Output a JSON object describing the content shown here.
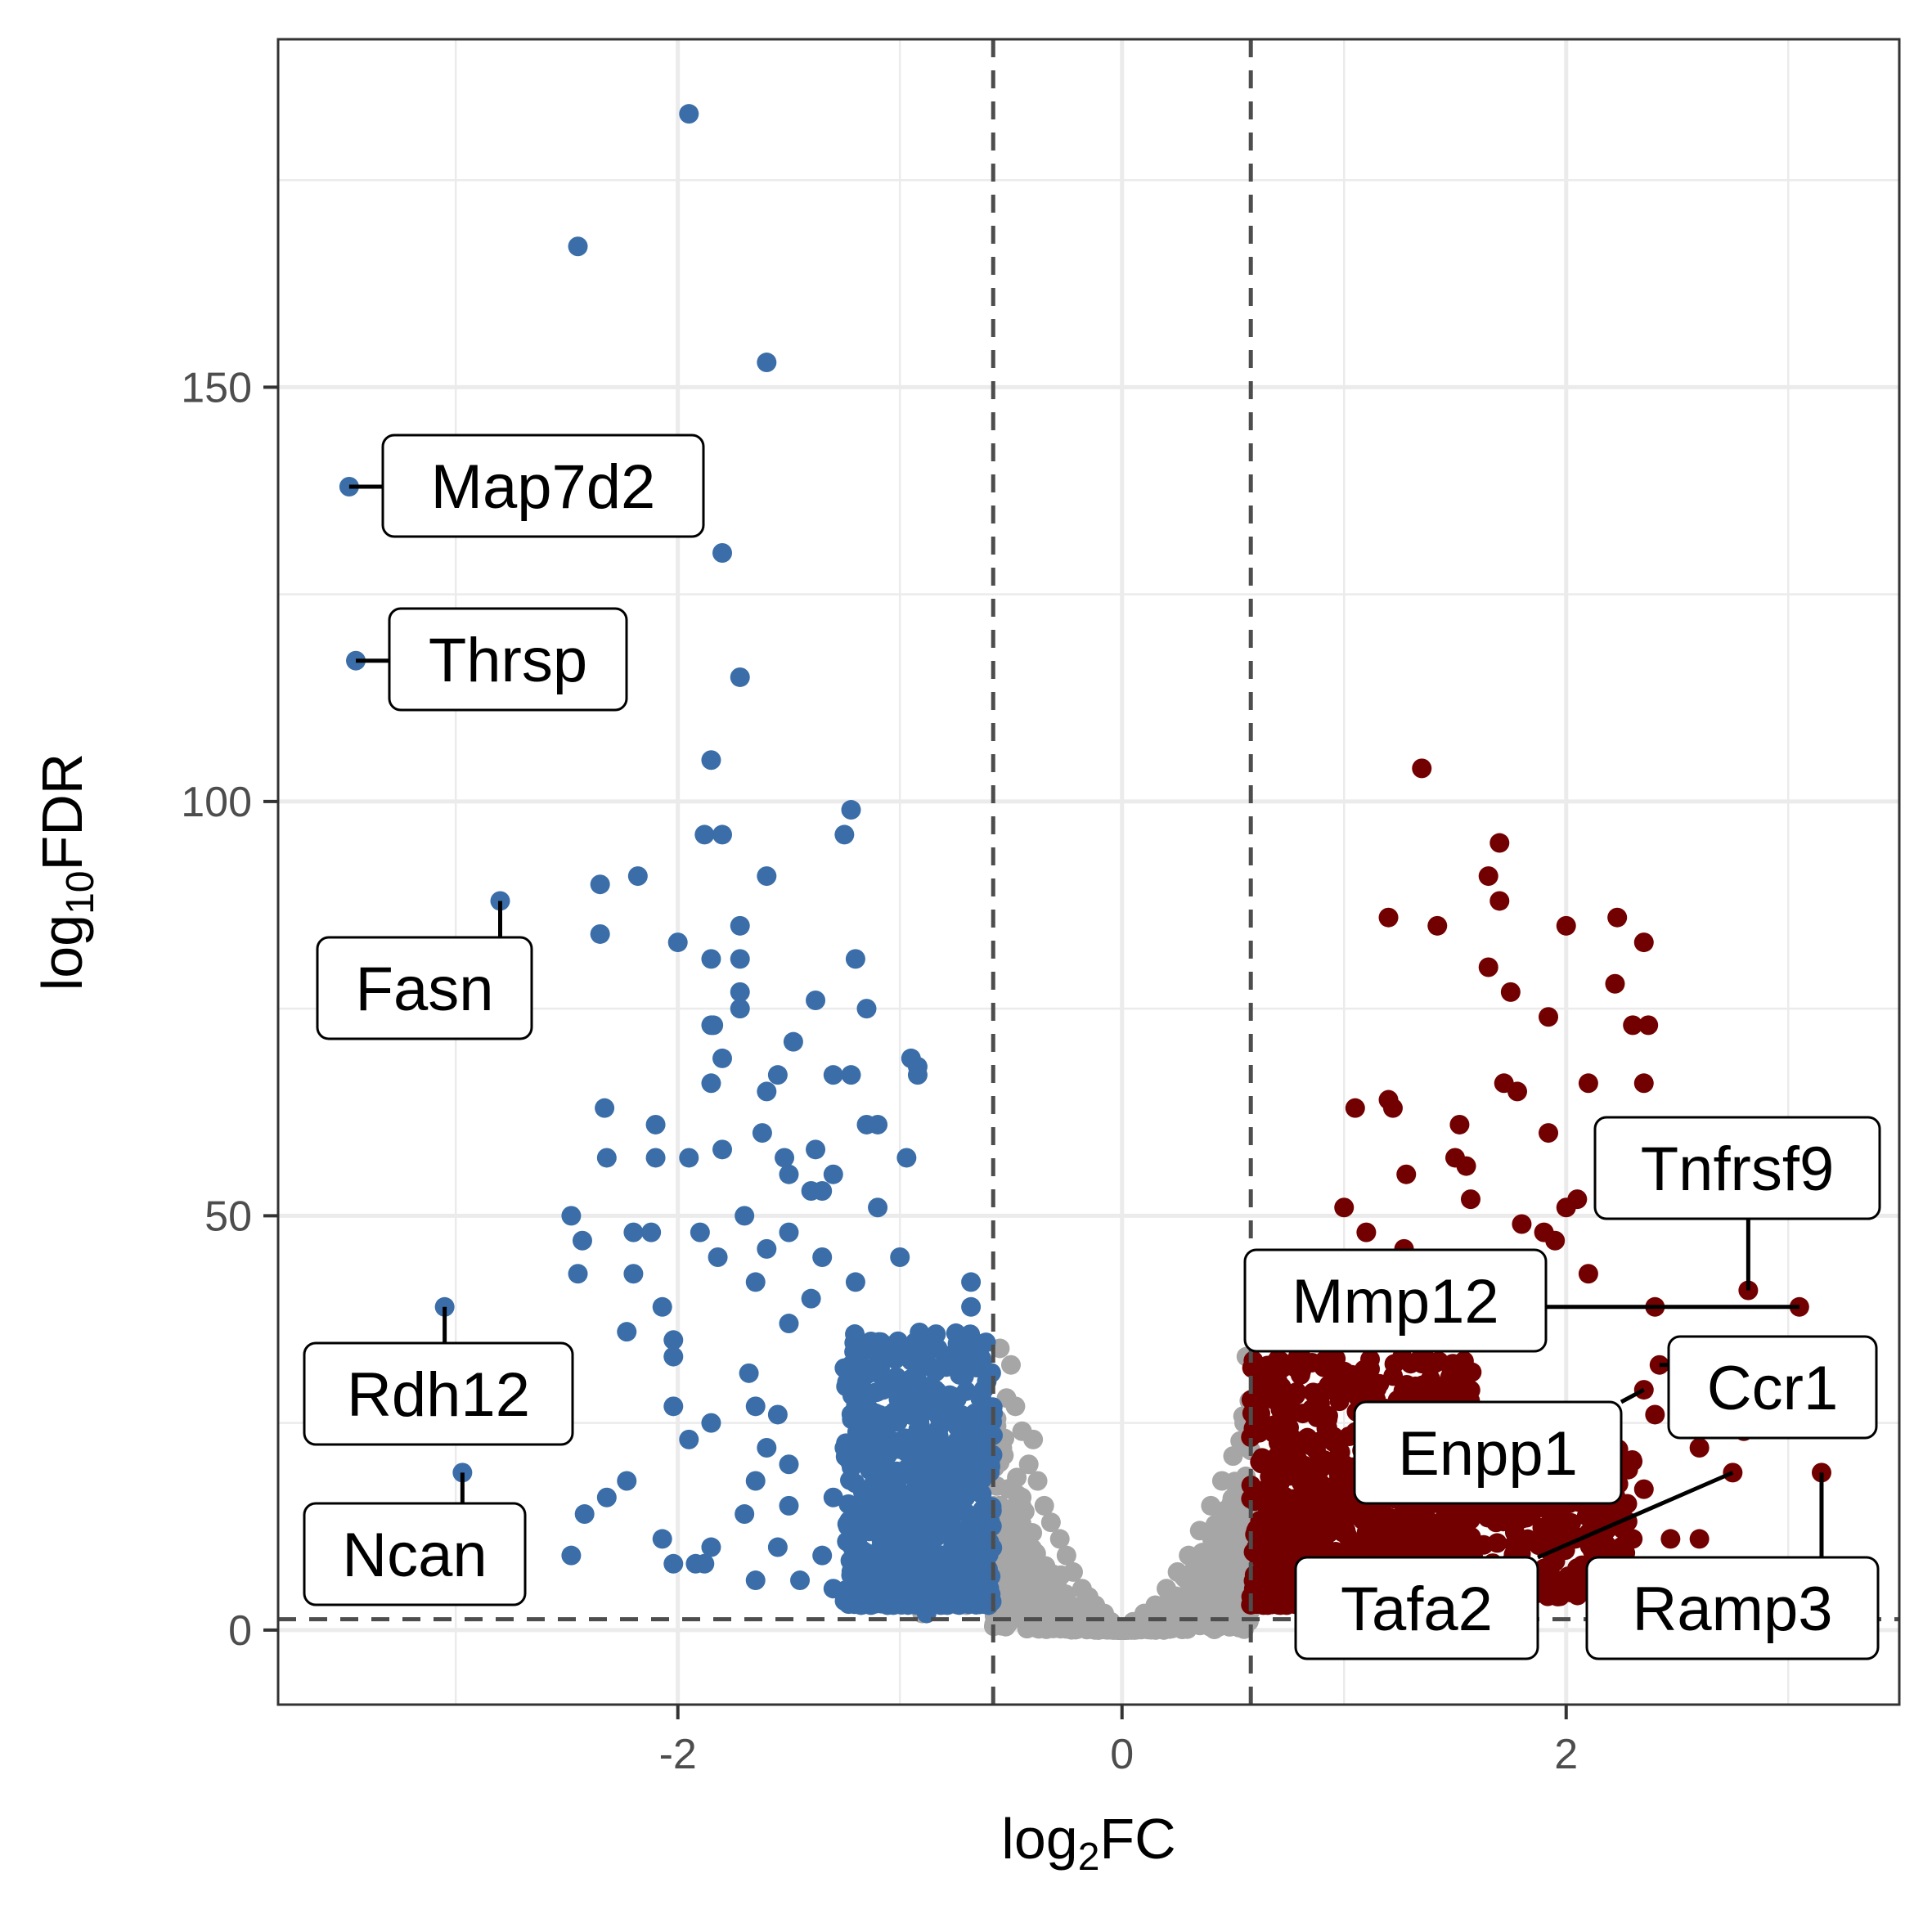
{
  "chart_data": {
    "type": "scatter",
    "title": "",
    "xlabel": "log2FC",
    "ylabel": "log10FDR",
    "xlim": [
      -3.8,
      3.5
    ],
    "ylim": [
      -9,
      192
    ],
    "x_ticks": [
      -2,
      0,
      2
    ],
    "y_ticks": [
      0,
      50,
      100,
      150
    ],
    "x_tick_labels": [
      "-2",
      "0",
      "2"
    ],
    "y_tick_labels": [
      "0",
      "50",
      "100",
      "150"
    ],
    "grid": true,
    "legend": "none",
    "thresholds": {
      "log2FC": [
        -0.58,
        0.58
      ],
      "log10FDR": 1.3
    },
    "colors": {
      "down": "#3B6EA8",
      "up": "#730000",
      "ns": "#A6A6A6",
      "threshold_line": "#4d4d4d"
    },
    "series": [
      {
        "color": "#3B6EA8",
        "points": [
          [
            -1.95,
            183
          ],
          [
            -2.45,
            167
          ],
          [
            -1.6,
            153
          ],
          [
            -3.48,
            138
          ],
          [
            -1.8,
            130
          ],
          [
            -3.45,
            117
          ],
          [
            -1.72,
            115
          ],
          [
            -1.85,
            105
          ],
          [
            -1.22,
            99
          ],
          [
            -1.25,
            96
          ],
          [
            -1.88,
            96
          ],
          [
            -1.8,
            96
          ],
          [
            -2.8,
            88
          ],
          [
            -2.18,
            91
          ],
          [
            -2.35,
            90
          ],
          [
            -1.6,
            91
          ],
          [
            -2.35,
            84
          ],
          [
            -1.72,
            85
          ],
          [
            -2.0,
            83
          ],
          [
            -1.85,
            81
          ],
          [
            -1.72,
            81
          ],
          [
            -1.2,
            81
          ],
          [
            -1.72,
            77
          ],
          [
            -1.72,
            75
          ],
          [
            -1.38,
            76
          ],
          [
            -1.15,
            75
          ],
          [
            -1.85,
            73
          ],
          [
            -1.84,
            73
          ],
          [
            -1.48,
            71
          ],
          [
            -1.8,
            69
          ],
          [
            -1.55,
            67
          ],
          [
            -1.3,
            67
          ],
          [
            -1.22,
            67
          ],
          [
            -0.95,
            69
          ],
          [
            -0.92,
            68
          ],
          [
            -1.85,
            66
          ],
          [
            -1.6,
            65
          ],
          [
            -0.92,
            67
          ],
          [
            -2.33,
            63
          ],
          [
            -2.1,
            61
          ],
          [
            -1.15,
            61
          ],
          [
            -1.1,
            61
          ],
          [
            -2.1,
            57
          ],
          [
            -1.95,
            57
          ],
          [
            -1.8,
            58
          ],
          [
            -1.38,
            58
          ],
          [
            -0.97,
            57
          ],
          [
            -2.32,
            57
          ],
          [
            -1.62,
            60
          ],
          [
            -1.52,
            57
          ],
          [
            -1.5,
            55
          ],
          [
            -1.3,
            55
          ],
          [
            -1.4,
            53
          ],
          [
            -1.35,
            53
          ],
          [
            -2.48,
            50
          ],
          [
            -1.7,
            50
          ],
          [
            -1.5,
            48
          ],
          [
            -2.2,
            48
          ],
          [
            -2.12,
            48
          ],
          [
            -1.9,
            48
          ],
          [
            -1.1,
            51
          ],
          [
            -1.6,
            46
          ],
          [
            -2.43,
            47
          ],
          [
            -1.82,
            45
          ],
          [
            -1.35,
            45
          ],
          [
            -1.0,
            45
          ],
          [
            -1.2,
            42
          ],
          [
            -0.68,
            42
          ],
          [
            -2.2,
            43
          ],
          [
            -2.45,
            43
          ],
          [
            -1.65,
            42
          ],
          [
            -1.4,
            40
          ],
          [
            -2.07,
            39
          ],
          [
            -0.68,
            39
          ],
          [
            -3.05,
            39
          ],
          [
            -1.5,
            37
          ],
          [
            -2.23,
            36
          ],
          [
            -2.02,
            35
          ],
          [
            -2.02,
            33
          ],
          [
            -1.68,
            31
          ],
          [
            -1.65,
            27
          ],
          [
            -1.55,
            26
          ],
          [
            -2.02,
            27
          ],
          [
            -1.85,
            25
          ],
          [
            -1.95,
            23
          ],
          [
            -1.6,
            22
          ],
          [
            -1.5,
            20
          ],
          [
            -1.65,
            18
          ],
          [
            -2.97,
            19
          ],
          [
            -2.23,
            18
          ],
          [
            -2.32,
            16
          ],
          [
            -1.3,
            16
          ],
          [
            -1.5,
            15
          ],
          [
            -1.7,
            14
          ],
          [
            -2.42,
            14
          ],
          [
            -2.07,
            11
          ],
          [
            -1.85,
            10
          ],
          [
            -2.48,
            9
          ],
          [
            -1.55,
            10
          ],
          [
            -1.35,
            9
          ],
          [
            -2.02,
            8
          ],
          [
            -1.92,
            8
          ],
          [
            -1.88,
            8
          ],
          [
            -1.65,
            6
          ],
          [
            -1.45,
            6
          ],
          [
            -1.3,
            5
          ],
          [
            -1.15,
            5
          ],
          [
            -0.9,
            5
          ],
          [
            -0.78,
            5
          ],
          [
            -1.0,
            4
          ],
          [
            -0.88,
            2
          ]
        ]
      },
      {
        "color": "#730000",
        "points": [
          [
            1.35,
            104
          ],
          [
            1.7,
            95
          ],
          [
            1.65,
            91
          ],
          [
            1.7,
            88
          ],
          [
            1.2,
            86
          ],
          [
            1.42,
            85
          ],
          [
            2.0,
            85
          ],
          [
            2.23,
            86
          ],
          [
            2.35,
            83
          ],
          [
            1.65,
            80
          ],
          [
            1.75,
            77
          ],
          [
            2.22,
            78
          ],
          [
            1.92,
            74
          ],
          [
            2.3,
            73
          ],
          [
            2.37,
            73
          ],
          [
            1.72,
            66
          ],
          [
            1.78,
            65
          ],
          [
            2.35,
            66
          ],
          [
            2.1,
            66
          ],
          [
            1.2,
            64
          ],
          [
            1.22,
            63
          ],
          [
            1.05,
            63
          ],
          [
            1.52,
            61
          ],
          [
            1.92,
            60
          ],
          [
            1.5,
            57
          ],
          [
            1.55,
            56
          ],
          [
            1.28,
            55
          ],
          [
            1.57,
            52
          ],
          [
            2.05,
            52
          ],
          [
            1.0,
            51
          ],
          [
            2.0,
            51
          ],
          [
            1.8,
            49
          ],
          [
            1.9,
            48
          ],
          [
            1.1,
            48
          ],
          [
            1.95,
            47
          ],
          [
            1.27,
            46
          ],
          [
            2.1,
            43
          ],
          [
            2.82,
            41
          ],
          [
            3.05,
            39
          ],
          [
            2.4,
            39
          ],
          [
            1.42,
            41
          ],
          [
            1.6,
            38
          ],
          [
            2.42,
            32
          ],
          [
            2.35,
            29
          ],
          [
            2.85,
            28
          ],
          [
            2.4,
            26
          ],
          [
            2.8,
            24
          ],
          [
            2.6,
            22
          ],
          [
            3.15,
            19
          ],
          [
            2.75,
            19
          ],
          [
            2.35,
            17
          ],
          [
            1.9,
            17
          ],
          [
            2.05,
            16
          ],
          [
            2.2,
            13
          ],
          [
            2.3,
            11
          ],
          [
            2.6,
            11
          ],
          [
            2.47,
            11
          ],
          [
            2.15,
            9
          ]
        ]
      },
      {
        "color": "#A6A6A6",
        "points": [
          [
            -0.55,
            34
          ],
          [
            -0.5,
            32
          ],
          [
            -0.52,
            28
          ],
          [
            -0.48,
            27
          ],
          [
            -0.45,
            24
          ],
          [
            -0.4,
            23
          ],
          [
            -0.42,
            20
          ],
          [
            -0.38,
            18
          ],
          [
            -0.35,
            15
          ],
          [
            -0.32,
            13
          ],
          [
            -0.28,
            11
          ],
          [
            -0.25,
            9
          ],
          [
            -0.22,
            7
          ],
          [
            -0.18,
            5
          ],
          [
            -0.15,
            4
          ],
          [
            -0.12,
            3
          ],
          [
            -0.08,
            2
          ],
          [
            -0.05,
            1
          ],
          [
            0.0,
            0
          ],
          [
            0.05,
            1
          ],
          [
            0.1,
            2
          ],
          [
            0.15,
            3
          ],
          [
            0.2,
            5
          ],
          [
            0.25,
            7
          ],
          [
            0.3,
            9
          ],
          [
            0.35,
            12
          ],
          [
            0.4,
            15
          ],
          [
            0.45,
            18
          ],
          [
            0.5,
            21
          ],
          [
            0.55,
            25
          ],
          [
            0.56,
            33
          ],
          [
            -0.6,
            20
          ],
          [
            -0.58,
            15
          ],
          [
            -0.6,
            10
          ],
          [
            -0.6,
            6
          ],
          [
            -0.7,
            3
          ],
          [
            -0.9,
            2
          ],
          [
            0.7,
            4
          ],
          [
            0.85,
            3
          ]
        ]
      }
    ],
    "labels": [
      {
        "text": "Map7d2",
        "point": [
          -3.48,
          138
        ]
      },
      {
        "text": "Thrsp",
        "point": [
          -3.45,
          117
        ]
      },
      {
        "text": "Fasn",
        "point": [
          -2.8,
          88
        ]
      },
      {
        "text": "Rdh12",
        "point": [
          -3.05,
          39
        ]
      },
      {
        "text": "Ncan",
        "point": [
          -2.97,
          19
        ]
      },
      {
        "text": "Tnfrsf9",
        "point": [
          2.82,
          41
        ]
      },
      {
        "text": "Mmp12",
        "point": [
          3.05,
          39
        ]
      },
      {
        "text": "Ccr1",
        "point": [
          2.42,
          32
        ]
      },
      {
        "text": "Enpp1",
        "point": [
          2.35,
          29
        ]
      },
      {
        "text": "Tafa2",
        "point": [
          2.75,
          19
        ]
      },
      {
        "text": "Ramp3",
        "point": [
          3.15,
          19
        ]
      }
    ]
  }
}
